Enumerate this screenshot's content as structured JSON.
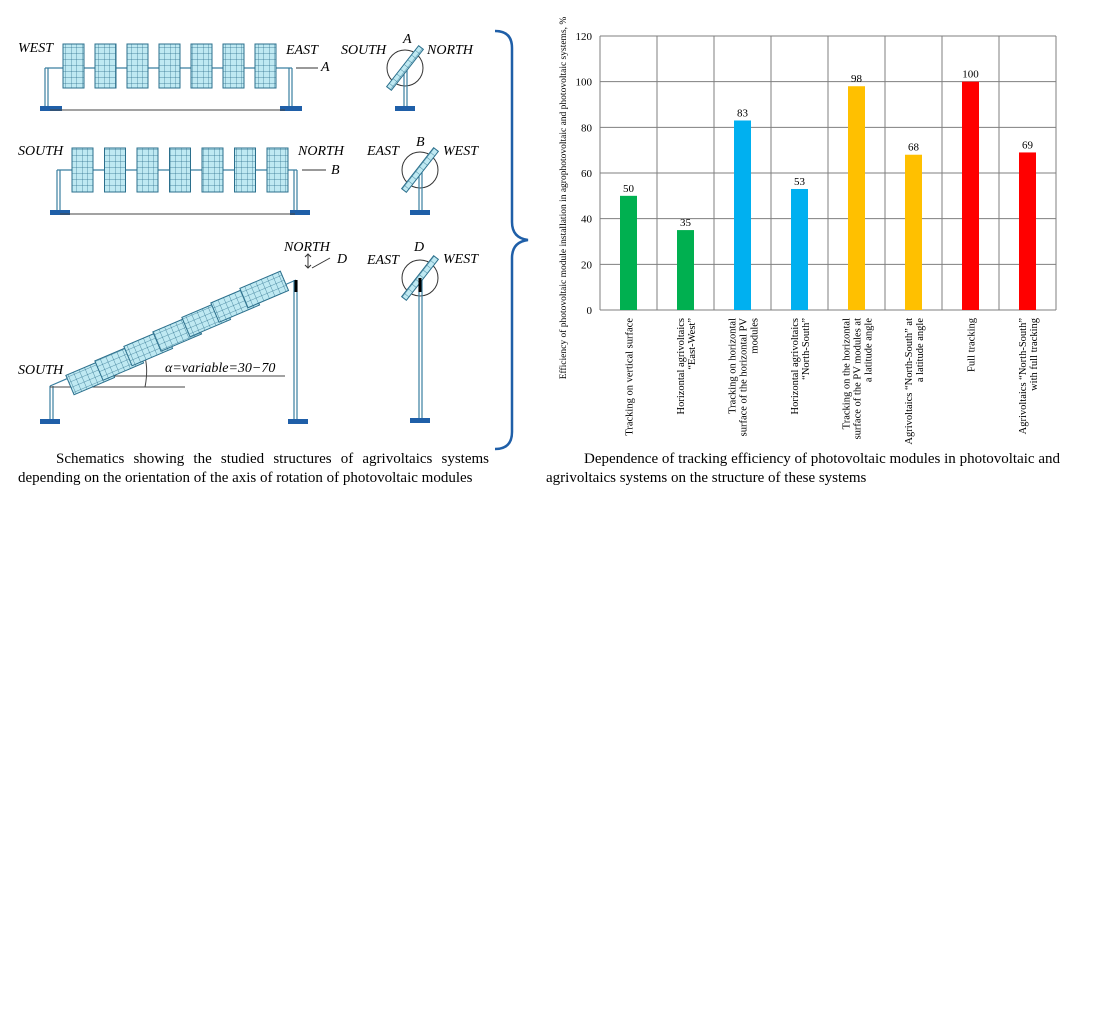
{
  "diagram": {
    "labels": [
      "WEST",
      "EAST",
      "A",
      "SOUTH",
      "A",
      "NORTH",
      "SOUTH",
      "NORTH",
      "B",
      "EAST",
      "B",
      "WEST",
      "NORTH",
      "D",
      "EAST",
      "D",
      "WEST",
      "SOUTH",
      "α=variable=30−70"
    ]
  },
  "captions": {
    "left": "Schematics showing the studied structures of agrivoltaics systems depending on the orientation of the axis of rotation of photovoltaic modules",
    "right": "Dependence of tracking efficiency of photovoltaic modules in photovoltaic and agrivoltaics systems on the structure of these systems"
  },
  "chart_data": {
    "type": "bar",
    "y_label": "Efficiency of photovoltaic module installation in agrophotovoltaic and photovoltaic systems, %",
    "categories": [
      "Tracking on vertical surface",
      "Horizontal agrivoltaics “East-West”",
      "Tracking on horizontal surface of the horizontal PV modules",
      "Horizontal agrivoltaics “North-South”",
      "Tracking on the horizontal surface of the PV modules at a latitude angle",
      "Agrivoltaics “North-South” at a latitude angle",
      "Full tracking",
      "Agrivoltaics “North-South” with full tracking"
    ],
    "values": [
      50,
      35,
      83,
      53,
      98,
      68,
      100,
      69
    ],
    "colors": [
      "#00b050",
      "#00b050",
      "#00b0f0",
      "#00b0f0",
      "#ffc000",
      "#ffc000",
      "#ff0000",
      "#ff0000"
    ],
    "ylim": [
      0,
      120
    ],
    "yticks": [
      0,
      20,
      40,
      60,
      80,
      100,
      120
    ],
    "grid": true
  }
}
